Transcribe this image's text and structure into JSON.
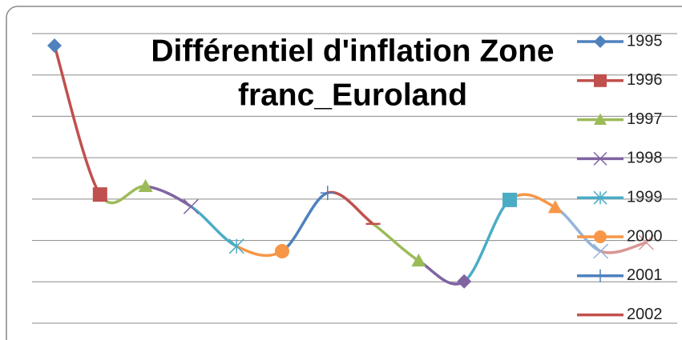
{
  "chart_data": {
    "type": "line",
    "title": [
      "Différentiel d'inflation Zone",
      "franc_Euroland"
    ],
    "categories": [
      "1995",
      "1996",
      "1997",
      "1998",
      "1999",
      "2000",
      "2001",
      "2002",
      null,
      null,
      null,
      null,
      null,
      null
    ],
    "values": [
      6.71,
      3.11,
      3.31,
      2.82,
      1.86,
      1.74,
      3.15,
      2.4,
      1.51,
      1.01,
      2.98,
      2.8,
      1.74,
      1.95
    ],
    "colors": [
      "#4F81BD",
      "#C0504D",
      "#9BBB59",
      "#8064A2",
      "#4BACC6",
      "#F79646",
      "#4F81BD",
      "#C0504D",
      "#9BBB59",
      "#8064A2",
      "#4BACC6",
      "#F79646",
      "#95B3D7",
      "#D99694"
    ],
    "markers": [
      "diamond",
      "square",
      "triangle",
      "x",
      "star",
      "circle",
      "plus",
      "dash",
      "triangle",
      "diamond",
      "square",
      "triangle",
      "x",
      "x"
    ],
    "smooth": true,
    "ylim": [
      0,
      7
    ],
    "yticks": [
      0,
      1,
      2,
      3,
      4,
      5,
      6,
      7
    ],
    "grid": true,
    "legend": "right"
  }
}
